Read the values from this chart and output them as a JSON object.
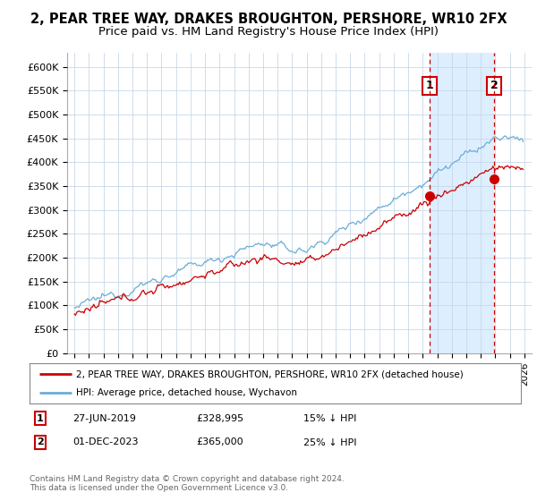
{
  "title": "2, PEAR TREE WAY, DRAKES BROUGHTON, PERSHORE, WR10 2FX",
  "subtitle": "Price paid vs. HM Land Registry's House Price Index (HPI)",
  "ylabel_ticks": [
    "£0",
    "£50K",
    "£100K",
    "£150K",
    "£200K",
    "£250K",
    "£300K",
    "£350K",
    "£400K",
    "£450K",
    "£500K",
    "£550K",
    "£600K"
  ],
  "ytick_values": [
    0,
    50000,
    100000,
    150000,
    200000,
    250000,
    300000,
    350000,
    400000,
    450000,
    500000,
    550000,
    600000
  ],
  "ylim": [
    0,
    630000
  ],
  "xlim_start": 1994.5,
  "xlim_end": 2026.5,
  "sale1_date": 2019.49,
  "sale1_price": 328995,
  "sale1_hpi_pct": "15% ↓ HPI",
  "sale1_display_date": "27-JUN-2019",
  "sale2_date": 2023.92,
  "sale2_price": 365000,
  "sale2_hpi_pct": "25% ↓ HPI",
  "sale2_display_date": "01-DEC-2023",
  "hpi_color": "#6baed6",
  "price_color": "#cc0000",
  "vline_color": "#cc0000",
  "highlight_color": "#ddeeff",
  "grid_color": "#c8d8e8",
  "plot_bg_color": "#ffffff",
  "legend_label_price": "2, PEAR TREE WAY, DRAKES BROUGHTON, PERSHORE, WR10 2FX (detached house)",
  "legend_label_hpi": "HPI: Average price, detached house, Wychavon",
  "footnote": "Contains HM Land Registry data © Crown copyright and database right 2024.\nThis data is licensed under the Open Government Licence v3.0.",
  "title_fontsize": 10.5,
  "subtitle_fontsize": 9.5
}
